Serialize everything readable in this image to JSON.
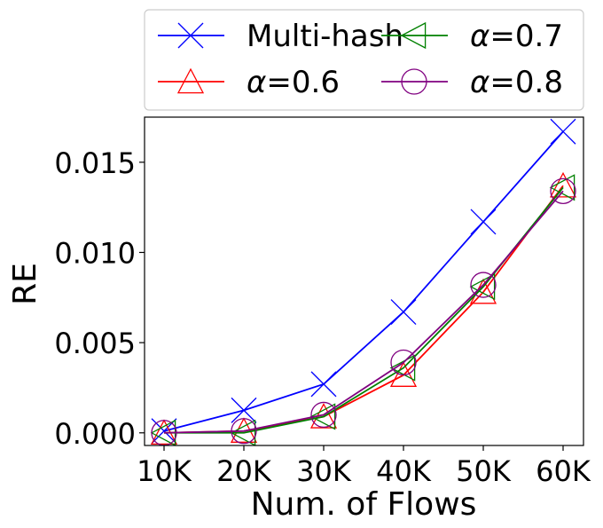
{
  "chart_data": {
    "type": "line",
    "title": "",
    "xlabel": "Num. of Flows",
    "ylabel": "RE",
    "categories": [
      "10K",
      "20K",
      "30K",
      "40K",
      "50K",
      "60K"
    ],
    "ylim": [
      -0.0007,
      0.0175
    ],
    "yticks": [
      "0.000",
      "0.005",
      "0.010",
      "0.015"
    ],
    "ytick_values": [
      0.0,
      0.005,
      0.01,
      0.015
    ],
    "grid": false,
    "legend_position": "top",
    "legend_columns": 2,
    "series": [
      {
        "name": "Multi-hash",
        "label_prefix": "",
        "label_value": "Multi-hash",
        "color": "#0000ff",
        "marker": "x",
        "values": [
          0.0001,
          0.00125,
          0.0027,
          0.0067,
          0.0117,
          0.0167
        ]
      },
      {
        "name": "α=0.6",
        "label_prefix": "α",
        "label_value": "=0.6",
        "color": "#ff0000",
        "marker": "triangle-up",
        "values": [
          0.0,
          0.0001,
          0.0009,
          0.0032,
          0.0078,
          0.0137
        ]
      },
      {
        "name": "α=0.7",
        "label_prefix": "α",
        "label_value": "=0.7",
        "color": "#008000",
        "marker": "triangle-left",
        "values": [
          0.0,
          0.0,
          0.0009,
          0.0036,
          0.0081,
          0.0136
        ]
      },
      {
        "name": "α=0.8",
        "label_prefix": "α",
        "label_value": "=0.8",
        "color": "#800080",
        "marker": "circle",
        "values": [
          0.0,
          0.0001,
          0.001,
          0.0039,
          0.0082,
          0.0134
        ]
      }
    ]
  }
}
